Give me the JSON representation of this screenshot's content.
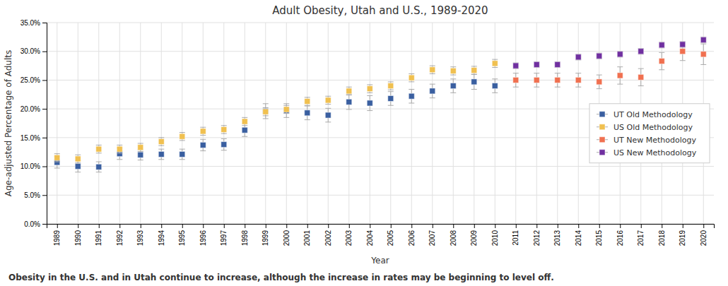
{
  "chart_data": {
    "type": "scatter",
    "title": "Adult Obesity, Utah and U.S., 1989-2020",
    "x_label": "Year",
    "y_label": "Age-adjusted Percentage of Adults",
    "caption": "Obesity in the U.S. and in Utah continue to increase, although the increase in rates may be beginning to level off.",
    "marker": "square",
    "grid": true,
    "legend": "right",
    "xlim": [
      1988.5,
      2020.5
    ],
    "xticks": [
      1989,
      1990,
      1991,
      1992,
      1993,
      1994,
      1995,
      1996,
      1997,
      1998,
      1999,
      2000,
      2001,
      2002,
      2003,
      2004,
      2005,
      2006,
      2007,
      2008,
      2009,
      2010,
      2011,
      2012,
      2013,
      2014,
      2015,
      2016,
      2017,
      2018,
      2019,
      2020
    ],
    "ylim": [
      0.0,
      0.35
    ],
    "yticks": [
      {
        "value": 0.0,
        "label": "0.0%"
      },
      {
        "value": 0.05,
        "label": "5.0%"
      },
      {
        "value": 0.1,
        "label": "10.0%"
      },
      {
        "value": 0.15,
        "label": "15.0%"
      },
      {
        "value": 0.2,
        "label": "20.0%"
      },
      {
        "value": 0.25,
        "label": "25.0%"
      },
      {
        "value": 0.3,
        "label": "30.0%"
      },
      {
        "value": 0.35,
        "label": "35.0%"
      }
    ],
    "series": [
      {
        "name": "UT Old Methodology",
        "color": "#3a5fa0",
        "x": [
          1989,
          1990,
          1991,
          1992,
          1993,
          1994,
          1995,
          1996,
          1997,
          1998,
          1999,
          2000,
          2001,
          2002,
          2003,
          2004,
          2005,
          2006,
          2007,
          2008,
          2009,
          2010
        ],
        "values": [
          0.107,
          0.1,
          0.099,
          0.122,
          0.12,
          0.121,
          0.121,
          0.137,
          0.138,
          0.163,
          0.196,
          0.197,
          0.193,
          0.189,
          0.212,
          0.21,
          0.218,
          0.222,
          0.231,
          0.24,
          0.247,
          0.24
        ],
        "errors": [
          0.01,
          0.01,
          0.009,
          0.01,
          0.009,
          0.009,
          0.009,
          0.01,
          0.01,
          0.011,
          0.013,
          0.012,
          0.012,
          0.012,
          0.013,
          0.013,
          0.012,
          0.012,
          0.012,
          0.012,
          0.013,
          0.012
        ]
      },
      {
        "name": "US Old Methodology",
        "color": "#f0c050",
        "x": [
          1989,
          1990,
          1991,
          1992,
          1993,
          1994,
          1995,
          1996,
          1997,
          1998,
          1999,
          2000,
          2001,
          2002,
          2003,
          2004,
          2005,
          2006,
          2007,
          2008,
          2009,
          2010
        ],
        "values": [
          0.115,
          0.113,
          0.13,
          0.13,
          0.133,
          0.143,
          0.152,
          0.161,
          0.164,
          0.178,
          0.195,
          0.199,
          0.213,
          0.215,
          0.231,
          0.235,
          0.24,
          0.254,
          0.268,
          0.266,
          0.267,
          0.279
        ],
        "errors": [
          0.007,
          0.007,
          0.007,
          0.007,
          0.007,
          0.007,
          0.007,
          0.007,
          0.007,
          0.007,
          0.007,
          0.007,
          0.007,
          0.007,
          0.007,
          0.007,
          0.007,
          0.007,
          0.007,
          0.007,
          0.007,
          0.007
        ]
      },
      {
        "name": "UT New Methodology",
        "color": "#f07050",
        "x": [
          2011,
          2012,
          2013,
          2014,
          2015,
          2016,
          2017,
          2018,
          2019,
          2020
        ],
        "values": [
          0.25,
          0.25,
          0.25,
          0.25,
          0.247,
          0.258,
          0.255,
          0.283,
          0.3,
          0.295
        ],
        "errors": [
          0.012,
          0.012,
          0.012,
          0.012,
          0.012,
          0.015,
          0.015,
          0.015,
          0.016,
          0.018
        ]
      },
      {
        "name": "US New Methodology",
        "color": "#7030a0",
        "x": [
          2011,
          2012,
          2013,
          2014,
          2015,
          2016,
          2017,
          2018,
          2019,
          2020
        ],
        "values": [
          0.275,
          0.277,
          0.277,
          0.29,
          0.292,
          0.295,
          0.3,
          0.311,
          0.312,
          0.32
        ],
        "errors": [
          0.005,
          0.005,
          0.005,
          0.005,
          0.005,
          0.005,
          0.005,
          0.005,
          0.005,
          0.005
        ]
      }
    ]
  }
}
